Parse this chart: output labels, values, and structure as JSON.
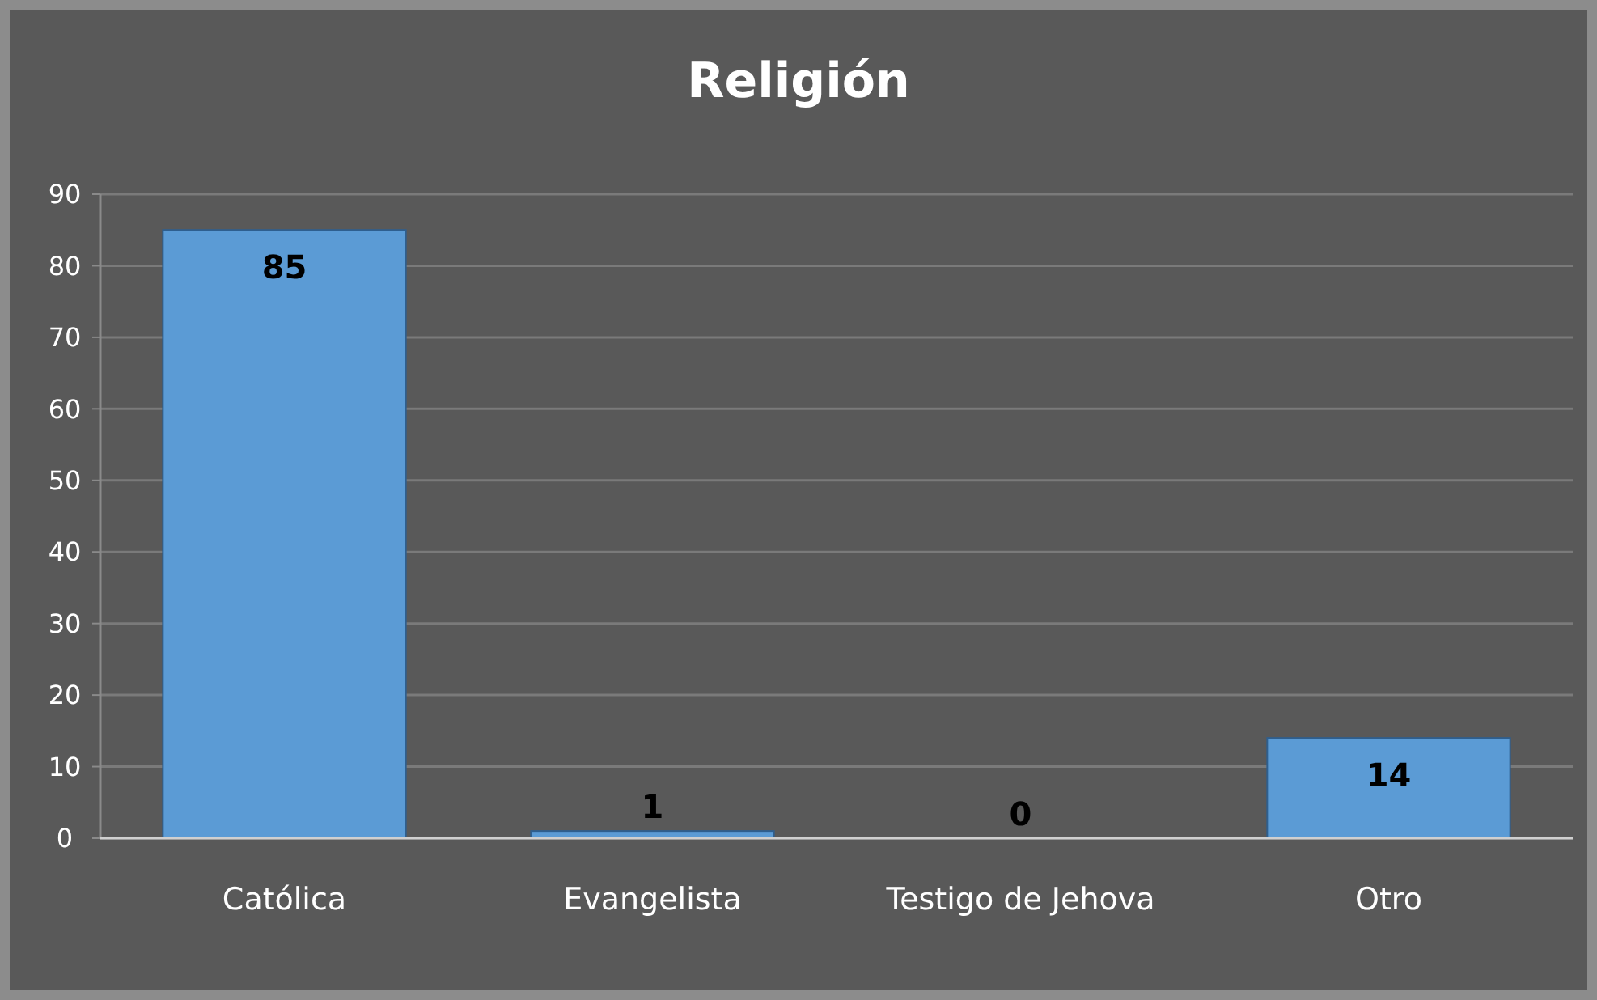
{
  "chart_data": {
    "type": "bar",
    "title": "Religión",
    "categories": [
      "Católica",
      "Evangelista",
      "Testigo de Jehova",
      "Otro"
    ],
    "values": [
      85,
      1,
      0,
      14
    ],
    "color": "#5b9bd5",
    "ylim": [
      0,
      90
    ],
    "yticks": [
      0,
      10,
      20,
      30,
      40,
      50,
      60,
      70,
      80,
      90
    ],
    "grid": "y",
    "data_labels": true
  }
}
